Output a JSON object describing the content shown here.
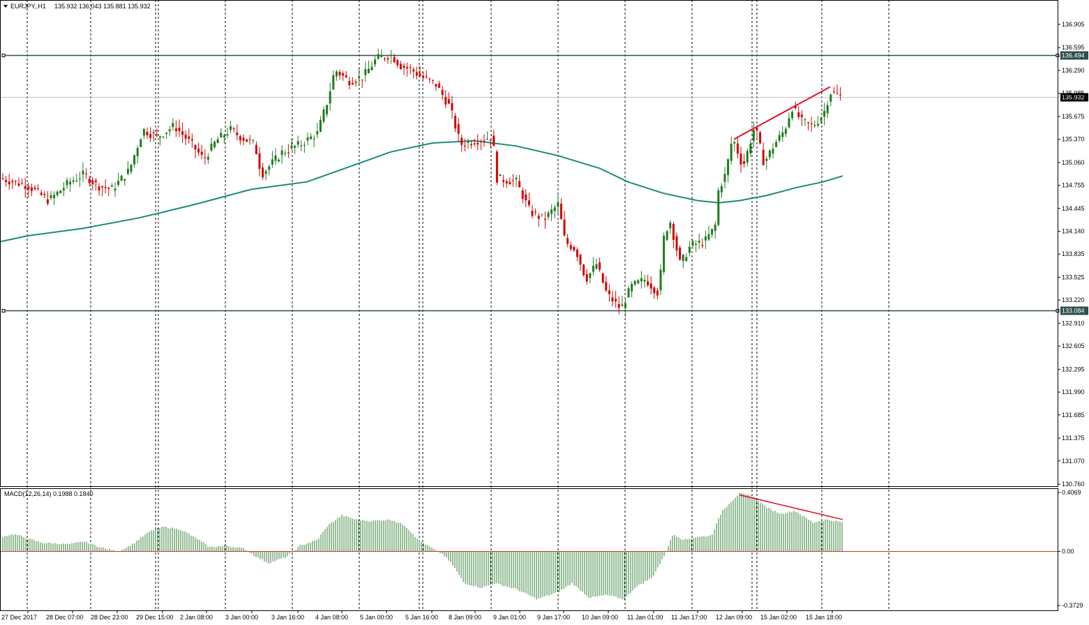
{
  "header": {
    "symbol_text": "EURJPY,.H1",
    "ohlc_text": "135.932 136.043 135.881 135.932",
    "macd_text": "MACD(12,26,14) 0.1988 0.1840"
  },
  "colors": {
    "background": "#ffffff",
    "bull_candle": "#1e7b1e",
    "bear_candle": "#d40000",
    "moving_average": "#1a8a7a",
    "level_line": "#2f4f4f",
    "trendline": "#e01030",
    "macd_histogram": "#2e7d32",
    "macd_zero_line": "#c0392b",
    "grid": "#000000"
  },
  "chart_data": [
    {
      "type": "candlestick",
      "name": "EURJPY,.H1",
      "ylim": [
        130.7,
        137.14
      ],
      "price_ticks": [
        "136.905",
        "136.595",
        "136.290",
        "135.985",
        "135.675",
        "135.370",
        "135.060",
        "134.755",
        "134.445",
        "134.140",
        "133.835",
        "133.525",
        "133.220",
        "132.910",
        "132.605",
        "132.295",
        "131.990",
        "131.685",
        "131.375",
        "131.070",
        "130.760"
      ],
      "time_labels": [
        "27 Dec 2017",
        "28 Dec 07:00",
        "28 Dec 23:00",
        "29 Dec 15:00",
        "2 Jan 08:00",
        "3 Jan 00:00",
        "3 Jan 16:00",
        "4 Jan 08:00",
        "5 Jan 00:00",
        "5 Jan 16:00",
        "8 Jan 09:00",
        "9 Jan 01:00",
        "9 Jan 17:00",
        "10 Jan 09:00",
        "11 Jan 01:00",
        "11 Jan 17:00",
        "12 Jan 09:00",
        "15 Jan 02:00",
        "15 Jan 18:00"
      ],
      "horizontal_levels": [
        {
          "value": 136.494,
          "label": "136.494"
        },
        {
          "value": 133.084,
          "label": "133.084"
        }
      ],
      "current_price": {
        "value": 135.932,
        "label": "135.932"
      },
      "moving_average_path": [
        [
          0,
          134.0
        ],
        [
          40,
          134.08
        ],
        [
          120,
          134.18
        ],
        [
          200,
          134.32
        ],
        [
          280,
          134.5
        ],
        [
          360,
          134.7
        ],
        [
          440,
          134.8
        ],
        [
          500,
          135.0
        ],
        [
          560,
          135.2
        ],
        [
          620,
          135.32
        ],
        [
          680,
          135.35
        ],
        [
          740,
          135.28
        ],
        [
          800,
          135.15
        ],
        [
          860,
          134.98
        ],
        [
          900,
          134.8
        ],
        [
          950,
          134.65
        ],
        [
          1000,
          134.55
        ],
        [
          1030,
          134.52
        ],
        [
          1060,
          134.55
        ],
        [
          1100,
          134.62
        ],
        [
          1140,
          134.72
        ],
        [
          1180,
          134.8
        ],
        [
          1208,
          134.88
        ]
      ],
      "price_path": [
        [
          0,
          134.85
        ],
        [
          40,
          134.75
        ],
        [
          70,
          134.55
        ],
        [
          100,
          134.8
        ],
        [
          120,
          134.9
        ],
        [
          140,
          134.75
        ],
        [
          160,
          134.7
        ],
        [
          185,
          134.95
        ],
        [
          205,
          135.5
        ],
        [
          225,
          135.4
        ],
        [
          250,
          135.55
        ],
        [
          275,
          135.3
        ],
        [
          292,
          135.1
        ],
        [
          310,
          135.35
        ],
        [
          330,
          135.5
        ],
        [
          345,
          135.4
        ],
        [
          365,
          135.3
        ],
        [
          375,
          134.9
        ],
        [
          390,
          135.05
        ],
        [
          405,
          135.2
        ],
        [
          430,
          135.3
        ],
        [
          455,
          135.45
        ],
        [
          470,
          135.9
        ],
        [
          480,
          136.3
        ],
        [
          500,
          136.15
        ],
        [
          520,
          136.2
        ],
        [
          540,
          136.45
        ],
        [
          560,
          136.5
        ],
        [
          575,
          136.35
        ],
        [
          590,
          136.3
        ],
        [
          605,
          136.2
        ],
        [
          625,
          136.1
        ],
        [
          645,
          135.8
        ],
        [
          660,
          135.3
        ],
        [
          680,
          135.35
        ],
        [
          706,
          135.4
        ],
        [
          712,
          134.85
        ],
        [
          740,
          134.8
        ],
        [
          760,
          134.4
        ],
        [
          780,
          134.3
        ],
        [
          800,
          134.5
        ],
        [
          810,
          134.0
        ],
        [
          825,
          133.9
        ],
        [
          840,
          133.5
        ],
        [
          855,
          133.7
        ],
        [
          870,
          133.3
        ],
        [
          890,
          133.1
        ],
        [
          905,
          133.4
        ],
        [
          925,
          133.5
        ],
        [
          945,
          133.3
        ],
        [
          950,
          134.0
        ],
        [
          960,
          134.3
        ],
        [
          975,
          133.7
        ],
        [
          990,
          133.95
        ],
        [
          1010,
          134.0
        ],
        [
          1025,
          134.2
        ],
        [
          1030,
          134.7
        ],
        [
          1040,
          134.9
        ],
        [
          1050,
          135.4
        ],
        [
          1065,
          135.0
        ],
        [
          1082,
          135.55
        ],
        [
          1095,
          135.05
        ],
        [
          1110,
          135.3
        ],
        [
          1125,
          135.5
        ],
        [
          1135,
          135.8
        ],
        [
          1150,
          135.6
        ],
        [
          1165,
          135.55
        ],
        [
          1180,
          135.7
        ],
        [
          1190,
          136.0
        ],
        [
          1208,
          135.93
        ]
      ],
      "trendline": {
        "from": [
          1052,
          135.37
        ],
        "to": [
          1190,
          136.07
        ]
      }
    },
    {
      "type": "bar",
      "name": "MACD(12,26,14)",
      "values_text": "0.1988 0.1840",
      "ylim": [
        -0.4,
        0.42
      ],
      "ticks": [
        "0.4069",
        "0.00",
        "-0.3729"
      ],
      "histogram_path": [
        [
          0,
          0.1
        ],
        [
          20,
          0.12
        ],
        [
          60,
          0.06
        ],
        [
          100,
          0.05
        ],
        [
          120,
          0.07
        ],
        [
          150,
          0.02
        ],
        [
          170,
          0.0
        ],
        [
          190,
          0.05
        ],
        [
          215,
          0.14
        ],
        [
          235,
          0.17
        ],
        [
          260,
          0.15
        ],
        [
          285,
          0.08
        ],
        [
          300,
          0.03
        ],
        [
          325,
          0.04
        ],
        [
          350,
          0.02
        ],
        [
          365,
          -0.03
        ],
        [
          385,
          -0.08
        ],
        [
          410,
          -0.04
        ],
        [
          430,
          0.04
        ],
        [
          455,
          0.08
        ],
        [
          470,
          0.18
        ],
        [
          490,
          0.25
        ],
        [
          510,
          0.22
        ],
        [
          530,
          0.21
        ],
        [
          560,
          0.22
        ],
        [
          580,
          0.18
        ],
        [
          600,
          0.08
        ],
        [
          620,
          0.02
        ],
        [
          635,
          -0.02
        ],
        [
          650,
          -0.1
        ],
        [
          665,
          -0.22
        ],
        [
          690,
          -0.25
        ],
        [
          710,
          -0.22
        ],
        [
          740,
          -0.26
        ],
        [
          770,
          -0.33
        ],
        [
          800,
          -0.28
        ],
        [
          820,
          -0.22
        ],
        [
          845,
          -0.32
        ],
        [
          870,
          -0.3
        ],
        [
          895,
          -0.33
        ],
        [
          910,
          -0.25
        ],
        [
          935,
          -0.18
        ],
        [
          950,
          -0.05
        ],
        [
          965,
          0.12
        ],
        [
          980,
          0.08
        ],
        [
          1000,
          0.1
        ],
        [
          1020,
          0.11
        ],
        [
          1035,
          0.28
        ],
        [
          1060,
          0.4
        ],
        [
          1080,
          0.38
        ],
        [
          1100,
          0.3
        ],
        [
          1120,
          0.26
        ],
        [
          1140,
          0.28
        ],
        [
          1165,
          0.2
        ],
        [
          1185,
          0.22
        ],
        [
          1208,
          0.2
        ]
      ],
      "trendline": {
        "from": [
          1060,
          0.39
        ],
        "to": [
          1208,
          0.22
        ]
      }
    }
  ]
}
